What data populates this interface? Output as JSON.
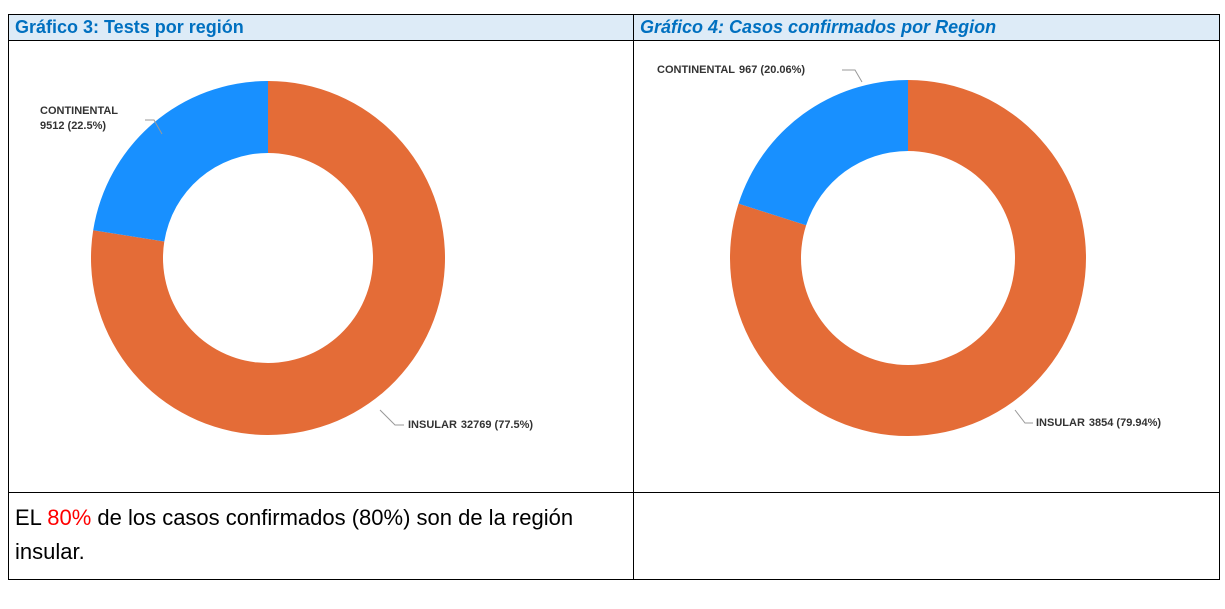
{
  "header": [
    "Gráfico 3: Tests por región",
    "Gráfico 4: Casos confirmados por Region"
  ],
  "chart_data": [
    {
      "type": "donut",
      "categories": [
        "INSULAR",
        "CONTINENTAL"
      ],
      "values": [
        32769,
        9512
      ],
      "value_labels": [
        "32769 (77.5%)",
        "9512 (22.5%)"
      ],
      "colors": [
        "#e46c37",
        "#1890ff"
      ]
    },
    {
      "type": "donut",
      "categories": [
        "INSULAR",
        "CONTINENTAL"
      ],
      "values": [
        3854,
        967
      ],
      "value_labels": [
        "3854 (79.94%)",
        "967 (20.06%)"
      ],
      "colors": [
        "#e46c37",
        "#1890ff"
      ]
    }
  ],
  "note": [
    "EL ",
    "80%",
    " de los casos confirmados (80%) son de la región insular."
  ]
}
